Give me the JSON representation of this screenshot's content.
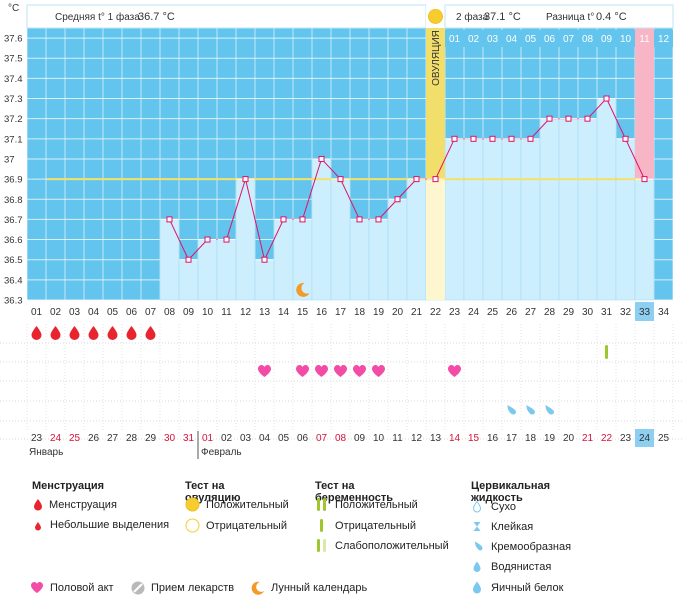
{
  "chart_data": {
    "type": "line",
    "unit_label": "°C",
    "y_ticks": [
      "37.6",
      "37.5",
      "37.4",
      "37.3",
      "37.2",
      "37.1",
      "37",
      "36.9",
      "36.8",
      "36.7",
      "36.6",
      "36.5",
      "36.4",
      "36.3"
    ],
    "ylim": [
      36.3,
      37.65
    ],
    "cycle_days": [
      "01",
      "02",
      "03",
      "04",
      "05",
      "06",
      "07",
      "08",
      "09",
      "10",
      "11",
      "12",
      "13",
      "14",
      "15",
      "16",
      "17",
      "18",
      "19",
      "20",
      "21",
      "22",
      "23",
      "24",
      "25",
      "26",
      "27",
      "28",
      "29",
      "30",
      "31",
      "32",
      "33",
      "34"
    ],
    "temperatures": [
      null,
      null,
      null,
      null,
      null,
      null,
      null,
      36.7,
      36.5,
      36.6,
      36.6,
      36.9,
      36.5,
      36.7,
      36.7,
      37.0,
      36.9,
      36.7,
      36.7,
      36.8,
      36.9,
      36.9,
      37.1,
      37.1,
      37.1,
      37.1,
      37.1,
      37.2,
      37.2,
      37.2,
      37.3,
      37.1,
      36.9,
      null
    ],
    "coverline": 36.9,
    "ovulation_day_index": 21,
    "ovulation_label": "ОВУЛЯЦИЯ",
    "current_day_index": 32,
    "phase2_days": [
      "01",
      "02",
      "03",
      "04",
      "05",
      "06",
      "07",
      "08",
      "09",
      "10",
      "11",
      "12"
    ],
    "phase2_highlight_index": 10,
    "phase1_label": "Средняя t° 1 фаза",
    "phase1_value": "36.7 °C",
    "phase2_label": "2 фаза",
    "phase2_value": "37.1 °C",
    "diff_label": "Разница t°",
    "diff_value": "0.4 °C",
    "dates": [
      "23",
      "24",
      "25",
      "26",
      "27",
      "28",
      "29",
      "30",
      "31",
      "01",
      "02",
      "03",
      "04",
      "05",
      "06",
      "07",
      "08",
      "09",
      "10",
      "11",
      "12",
      "13",
      "14",
      "15",
      "16",
      "17",
      "18",
      "19",
      "20",
      "21",
      "22",
      "23",
      "24",
      "25"
    ],
    "red_date_indices": [
      1,
      2,
      7,
      8,
      9,
      15,
      16,
      22,
      23,
      29,
      30
    ],
    "month_jan": "Январь",
    "month_feb": "Февраль",
    "menstruation_days": [
      0,
      1,
      2,
      3,
      4,
      5,
      6
    ],
    "pregnancy_test_day": 30,
    "intercourse_days": [
      12,
      14,
      15,
      16,
      17,
      18,
      22
    ],
    "moon_day": 14,
    "watery_fluid_days": [
      25,
      26,
      27
    ],
    "colors": {
      "sky": "#63c4ee",
      "grid": "#ffffff",
      "bar": "#cdeefc",
      "bar_border": "#9fd8f4",
      "line": "#e0106a",
      "coverline": "#f5e06a",
      "ovulation": "#f2df6b",
      "ovulation_light": "#fdf6cf",
      "current_day": "#f7b5c6",
      "today_box": "#8ccff0",
      "heart": "#f24ca6",
      "drop": "#e8242f",
      "fluid": "#7cc8ee",
      "test_green": "#9fc62c",
      "moon": "#f29a2a",
      "red_text": "#d8123c"
    }
  },
  "legend": {
    "menstruation": {
      "title": "Менструация",
      "items": [
        "Менструация",
        "Небольшие выделения"
      ]
    },
    "ovulation_test": {
      "title": "Тест на овуляцию",
      "items": [
        "Положительный",
        "Отрицательный"
      ]
    },
    "pregnancy_test": {
      "title": "Тест на беременность",
      "items": [
        "Положительный",
        "Отрицательный",
        "Слабоположительный"
      ]
    },
    "cervical": {
      "title": "Цервикальная жидкость",
      "items": [
        "Сухо",
        "Клейкая",
        "Кремообразная",
        "Водянистая",
        "Яичный белок"
      ]
    },
    "bottom": {
      "intercourse": "Половой акт",
      "medication": "Прием лекарств",
      "lunar": "Лунный календарь"
    }
  }
}
